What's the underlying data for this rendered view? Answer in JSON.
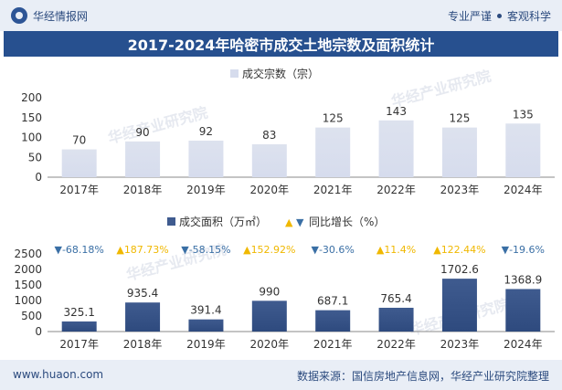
{
  "header": {
    "brand": "华经情报网",
    "slogan_left": "专业严谨",
    "slogan_right": "客观科学"
  },
  "title": "2017-2024年哈密市成交土地宗数及面积统计",
  "footer": {
    "site": "www.huaon.com",
    "source": "数据来源：国信房地产信息网，华经产业研究院整理"
  },
  "watermark": "华经产业研究院",
  "colors": {
    "brand_blue": "#27508f",
    "bar_top": "#dde2ee",
    "bar_bottom": "#3f5b8f",
    "down": "#3a6fa5",
    "up": "#f0b800"
  },
  "chart_data": [
    {
      "type": "bar",
      "legend": "成交宗数（宗）",
      "categories": [
        "2017年",
        "2018年",
        "2019年",
        "2020年",
        "2021年",
        "2022年",
        "2023年",
        "2024年"
      ],
      "values": [
        70,
        90,
        92,
        83,
        125,
        143,
        125,
        135
      ],
      "ylim": [
        0,
        200
      ],
      "yticks": [
        0,
        50,
        100,
        150,
        200
      ]
    },
    {
      "type": "bar",
      "legend_bar": "成交面积（万㎡）",
      "legend_line": "同比增长（%）",
      "categories": [
        "2017年",
        "2018年",
        "2019年",
        "2020年",
        "2021年",
        "2022年",
        "2023年",
        "2024年"
      ],
      "values": [
        325.1,
        935.4,
        391.4,
        990,
        687.1,
        765.4,
        1702.6,
        1368.9
      ],
      "value_labels": [
        "325.1",
        "935.4",
        "391.4",
        "990",
        "687.1",
        "765.4",
        "1702.6",
        "1368.9"
      ],
      "growth_labels": [
        "-68.18%",
        "187.73%",
        "-58.15%",
        "152.92%",
        "-30.6%",
        "11.4%",
        "122.44%",
        "-19.6%"
      ],
      "growth": [
        -68.18,
        187.73,
        -58.15,
        152.92,
        -30.6,
        11.4,
        122.44,
        -19.6
      ],
      "ylim": [
        0,
        2500
      ],
      "yticks": [
        0,
        500,
        1000,
        1500,
        2000,
        2500
      ]
    }
  ]
}
